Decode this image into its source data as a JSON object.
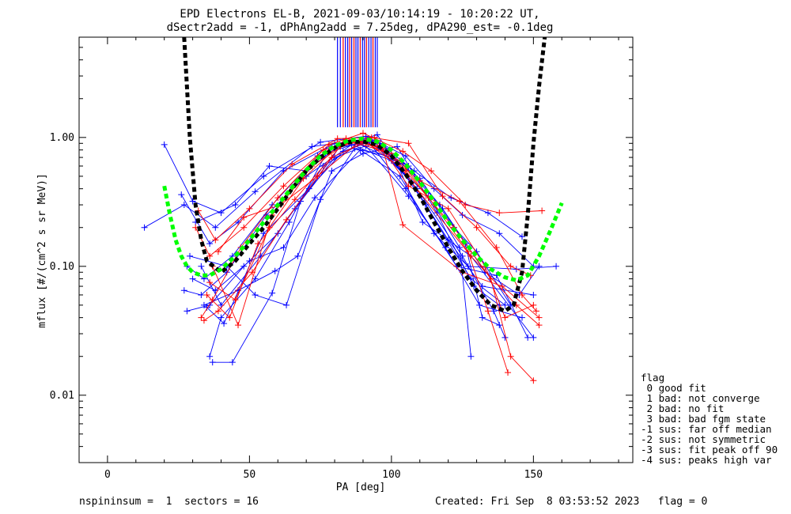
{
  "chart_data": {
    "type": "scatter",
    "title": "EPD Electrons EL-B, 2021-09-03/10:14:19 - 10:20:22 UT,",
    "subtitle": "dSectr2add = -1, dPhAng2add = 7.25deg, dPA290_est=  -0.1deg",
    "xlabel": "PA [deg]",
    "ylabel": "mflux [#/(cm^2 s sr MeV)]",
    "xlim": [
      -10,
      185
    ],
    "ylim": [
      0.003,
      6.0
    ],
    "yscale": "log",
    "x_ticks": [
      0,
      50,
      100,
      150
    ],
    "x_tick_labels": [
      "0",
      "50",
      "100",
      "150"
    ],
    "y_ticks": [
      0.01,
      0.1,
      1.0
    ],
    "y_tick_labels": [
      "0.01",
      "0.10",
      "1.00"
    ],
    "colors": {
      "sweep_a": "#0000ff",
      "sweep_b": "#ff0000",
      "fit_black": "#000000",
      "fit_green": "#00ff00"
    },
    "fit_curves": [
      {
        "color": "black",
        "style": "dashed",
        "x": [
          27,
          29,
          31,
          33,
          35,
          40,
          45,
          50,
          55,
          60,
          65,
          70,
          75,
          80,
          85,
          90,
          95,
          100,
          105,
          110,
          115,
          120,
          125,
          130,
          135,
          140,
          143,
          146,
          148,
          150,
          152,
          154
        ],
        "y": [
          6.0,
          1.0,
          0.3,
          0.16,
          0.11,
          0.09,
          0.11,
          0.15,
          0.2,
          0.28,
          0.4,
          0.55,
          0.7,
          0.83,
          0.92,
          0.93,
          0.88,
          0.72,
          0.52,
          0.35,
          0.22,
          0.14,
          0.092,
          0.065,
          0.05,
          0.045,
          0.05,
          0.09,
          0.25,
          0.9,
          2.5,
          6.0
        ]
      },
      {
        "color": "green",
        "style": "dashed",
        "x": [
          20,
          22,
          24,
          26,
          28,
          30,
          33,
          36,
          40,
          45,
          50,
          55,
          60,
          65,
          70,
          75,
          80,
          85,
          90,
          95,
          100,
          105,
          110,
          115,
          120,
          125,
          130,
          135,
          140,
          144,
          148,
          152,
          156,
          160
        ],
        "y": [
          0.42,
          0.25,
          0.16,
          0.12,
          0.1,
          0.09,
          0.085,
          0.085,
          0.095,
          0.12,
          0.16,
          0.22,
          0.3,
          0.41,
          0.56,
          0.72,
          0.86,
          0.95,
          0.98,
          0.93,
          0.8,
          0.62,
          0.45,
          0.32,
          0.22,
          0.16,
          0.12,
          0.095,
          0.082,
          0.078,
          0.085,
          0.12,
          0.19,
          0.31
        ]
      }
    ],
    "sweeps": [
      {
        "color": "blue",
        "points": [
          [
            20,
            0.88
          ],
          [
            30,
            0.32
          ],
          [
            40,
            0.26
          ],
          [
            55,
            0.5
          ],
          [
            75,
            0.92
          ],
          [
            91,
            1.02
          ],
          [
            105,
            0.72
          ],
          [
            115,
            0.4
          ],
          [
            125,
            0.25
          ],
          [
            138,
            0.18
          ],
          [
            150,
            0.1
          ]
        ]
      },
      {
        "color": "blue",
        "points": [
          [
            13,
            0.2
          ],
          [
            27,
            0.3
          ],
          [
            38,
            0.2
          ],
          [
            52,
            0.38
          ],
          [
            72,
            0.85
          ],
          [
            90,
            0.96
          ],
          [
            106,
            0.6
          ],
          [
            118,
            0.28
          ],
          [
            133,
            0.09
          ],
          [
            145,
            0.06
          ],
          [
            152,
            0.1
          ]
        ]
      },
      {
        "color": "blue",
        "points": [
          [
            26,
            0.36
          ],
          [
            36,
            0.15
          ],
          [
            46,
            0.22
          ],
          [
            62,
            0.55
          ],
          [
            80,
            0.9
          ],
          [
            93,
            0.95
          ],
          [
            110,
            0.48
          ],
          [
            122,
            0.2
          ],
          [
            130,
            0.13
          ],
          [
            142,
            0.05
          ]
        ]
      },
      {
        "color": "blue",
        "points": [
          [
            28,
            0.1
          ],
          [
            34,
            0.08
          ],
          [
            44,
            0.12
          ],
          [
            58,
            0.3
          ],
          [
            74,
            0.72
          ],
          [
            88,
            0.9
          ],
          [
            104,
            0.62
          ],
          [
            117,
            0.3
          ],
          [
            126,
            0.15
          ],
          [
            132,
            0.04
          ],
          [
            138,
            0.035
          ]
        ]
      },
      {
        "color": "blue",
        "points": [
          [
            27,
            0.065
          ],
          [
            33,
            0.06
          ],
          [
            42,
            0.09
          ],
          [
            56,
            0.25
          ],
          [
            70,
            0.5
          ],
          [
            86,
            0.88
          ],
          [
            100,
            0.66
          ],
          [
            113,
            0.35
          ],
          [
            124,
            0.14
          ],
          [
            128,
            0.02
          ]
        ]
      },
      {
        "color": "blue",
        "points": [
          [
            28,
            0.045
          ],
          [
            36,
            0.05
          ],
          [
            48,
            0.1
          ],
          [
            60,
            0.18
          ],
          [
            76,
            0.6
          ],
          [
            92,
            0.98
          ],
          [
            107,
            0.45
          ],
          [
            120,
            0.16
          ],
          [
            132,
            0.07
          ],
          [
            150,
            0.06
          ]
        ]
      },
      {
        "color": "blue",
        "points": [
          [
            36,
            0.02
          ],
          [
            40,
            0.04
          ],
          [
            52,
            0.08
          ],
          [
            64,
            0.22
          ],
          [
            78,
            0.82
          ],
          [
            94,
            0.93
          ],
          [
            109,
            0.4
          ],
          [
            125,
            0.12
          ],
          [
            136,
            0.045
          ],
          [
            140,
            0.028
          ]
        ]
      },
      {
        "color": "blue",
        "points": [
          [
            37,
            0.018
          ],
          [
            44,
            0.018
          ],
          [
            58,
            0.062
          ],
          [
            68,
            0.32
          ],
          [
            82,
            0.86
          ],
          [
            95,
            1.05
          ],
          [
            112,
            0.3
          ],
          [
            128,
            0.08
          ],
          [
            140,
            0.05
          ]
        ]
      },
      {
        "color": "blue",
        "points": [
          [
            30,
            0.08
          ],
          [
            38,
            0.065
          ],
          [
            50,
            0.11
          ],
          [
            62,
            0.14
          ],
          [
            73,
            0.34
          ],
          [
            89,
            0.8
          ],
          [
            103,
            0.5
          ],
          [
            115,
            0.18
          ],
          [
            127,
            0.1
          ],
          [
            144,
            0.095
          ],
          [
            158,
            0.1
          ]
        ]
      },
      {
        "color": "blue",
        "points": [
          [
            33,
            0.1
          ],
          [
            40,
            0.05
          ],
          [
            54,
            0.12
          ],
          [
            66,
            0.28
          ],
          [
            80,
            0.7
          ],
          [
            91,
            0.86
          ],
          [
            106,
            0.35
          ],
          [
            119,
            0.14
          ],
          [
            131,
            0.05
          ],
          [
            146,
            0.04
          ]
        ]
      },
      {
        "color": "blue",
        "points": [
          [
            29,
            0.12
          ],
          [
            42,
            0.1
          ],
          [
            52,
            0.06
          ],
          [
            63,
            0.05
          ],
          [
            75,
            0.33
          ],
          [
            87,
            0.82
          ],
          [
            101,
            0.7
          ],
          [
            111,
            0.22
          ],
          [
            128,
            0.12
          ],
          [
            150,
            0.028
          ]
        ]
      },
      {
        "color": "blue",
        "points": [
          [
            31,
            0.22
          ],
          [
            45,
            0.3
          ],
          [
            57,
            0.6
          ],
          [
            70,
            0.55
          ],
          [
            84,
            0.95
          ],
          [
            96,
            0.9
          ],
          [
            108,
            0.55
          ],
          [
            121,
            0.34
          ],
          [
            134,
            0.26
          ],
          [
            146,
            0.17
          ]
        ]
      },
      {
        "color": "blue",
        "points": [
          [
            34,
            0.05
          ],
          [
            46,
            0.065
          ],
          [
            59,
            0.092
          ],
          [
            67,
            0.12
          ],
          [
            79,
            0.55
          ],
          [
            90,
            0.75
          ],
          [
            102,
            0.85
          ],
          [
            116,
            0.26
          ],
          [
            129,
            0.07
          ],
          [
            138,
            0.05
          ]
        ]
      },
      {
        "color": "blue",
        "points": [
          [
            35,
            0.048
          ],
          [
            41,
            0.036
          ],
          [
            55,
            0.18
          ],
          [
            71,
            0.4
          ],
          [
            83,
            0.78
          ],
          [
            92,
            0.92
          ],
          [
            105,
            0.4
          ],
          [
            123,
            0.1
          ],
          [
            137,
            0.085
          ],
          [
            148,
            0.028
          ]
        ]
      },
      {
        "color": "red",
        "points": [
          [
            31,
            0.2
          ],
          [
            36,
            0.12
          ],
          [
            48,
            0.2
          ],
          [
            62,
            0.42
          ],
          [
            78,
            0.88
          ],
          [
            90,
            1.08
          ],
          [
            104,
            0.78
          ],
          [
            114,
            0.55
          ],
          [
            126,
            0.3
          ],
          [
            138,
            0.26
          ],
          [
            153,
            0.27
          ]
        ]
      },
      {
        "color": "red",
        "points": [
          [
            32,
            0.27
          ],
          [
            38,
            0.16
          ],
          [
            50,
            0.28
          ],
          [
            65,
            0.62
          ],
          [
            81,
            0.98
          ],
          [
            93,
            1.0
          ],
          [
            106,
            0.9
          ],
          [
            118,
            0.35
          ],
          [
            130,
            0.2
          ],
          [
            142,
            0.1
          ],
          [
            149,
            0.085
          ]
        ]
      },
      {
        "color": "red",
        "points": [
          [
            33,
            0.04
          ],
          [
            37,
            0.055
          ],
          [
            47,
            0.14
          ],
          [
            60,
            0.34
          ],
          [
            76,
            0.8
          ],
          [
            89,
            0.95
          ],
          [
            103,
            0.66
          ],
          [
            115,
            0.3
          ],
          [
            127,
            0.13
          ],
          [
            134,
            0.045
          ],
          [
            141,
            0.015
          ]
        ]
      },
      {
        "color": "red",
        "points": [
          [
            34,
            0.038
          ],
          [
            39,
            0.045
          ],
          [
            51,
            0.09
          ],
          [
            63,
            0.23
          ],
          [
            79,
            0.7
          ],
          [
            91,
            0.92
          ],
          [
            105,
            0.55
          ],
          [
            113,
            0.34
          ],
          [
            122,
            0.2
          ],
          [
            135,
            0.08
          ],
          [
            142,
            0.02
          ],
          [
            150,
            0.013
          ]
        ]
      },
      {
        "color": "red",
        "points": [
          [
            35,
            0.06
          ],
          [
            43,
            0.04
          ],
          [
            53,
            0.15
          ],
          [
            66,
            0.33
          ],
          [
            82,
            0.85
          ],
          [
            94,
            1.0
          ],
          [
            106,
            0.42
          ],
          [
            120,
            0.28
          ],
          [
            133,
            0.1
          ],
          [
            140,
            0.04
          ],
          [
            150,
            0.05
          ]
        ]
      },
      {
        "color": "red",
        "points": [
          [
            36,
            0.075
          ],
          [
            45,
            0.055
          ],
          [
            57,
            0.2
          ],
          [
            69,
            0.48
          ],
          [
            84,
            0.98
          ],
          [
            95,
            0.86
          ],
          [
            110,
            0.46
          ],
          [
            124,
            0.32
          ],
          [
            137,
            0.14
          ],
          [
            146,
            0.06
          ],
          [
            151,
            0.045
          ]
        ]
      },
      {
        "color": "red",
        "points": [
          [
            37,
            0.1
          ],
          [
            46,
            0.035
          ],
          [
            58,
            0.25
          ],
          [
            72,
            0.6
          ],
          [
            86,
            0.95
          ],
          [
            97,
            0.82
          ],
          [
            104,
            0.21
          ],
          [
            125,
            0.09
          ],
          [
            139,
            0.07
          ],
          [
            152,
            0.04
          ]
        ]
      },
      {
        "color": "red",
        "points": [
          [
            39,
            0.13
          ],
          [
            48,
            0.24
          ],
          [
            61,
            0.3
          ],
          [
            74,
            0.5
          ],
          [
            88,
            0.9
          ],
          [
            100,
            0.75
          ],
          [
            107,
            0.45
          ],
          [
            128,
            0.12
          ],
          [
            144,
            0.05
          ],
          [
            152,
            0.035
          ]
        ]
      }
    ],
    "spike_bars": {
      "x": [
        81,
        82,
        83,
        83.8,
        84.6,
        85.3,
        86,
        86.8,
        87.5,
        88.2,
        89,
        89.8,
        90.5,
        91.2,
        92,
        92.8,
        93.5,
        94.3,
        95
      ],
      "colors": [
        "blue",
        "blue",
        "red",
        "blue",
        "blue",
        "red",
        "blue",
        "red",
        "blue",
        "blue",
        "red",
        "blue",
        "blue",
        "red",
        "blue",
        "blue",
        "red",
        "blue",
        "blue"
      ],
      "y_from": 1.2,
      "y_to": 6.0
    }
  },
  "legend": {
    "title": "flag",
    "items": [
      " 0 good fit",
      " 1 bad: not converge",
      " 2 bad: no fit",
      " 3 bad: bad fgm state",
      "-1 sus: far off median",
      "-2 sus: not symmetric",
      "-3 sus: fit peak off 90",
      "-4 sus: peaks high var"
    ]
  },
  "footer": {
    "left": "nspininsum =  1  sectors = 16",
    "right": "Created: Fri Sep  8 03:53:52 2023   flag = 0"
  }
}
